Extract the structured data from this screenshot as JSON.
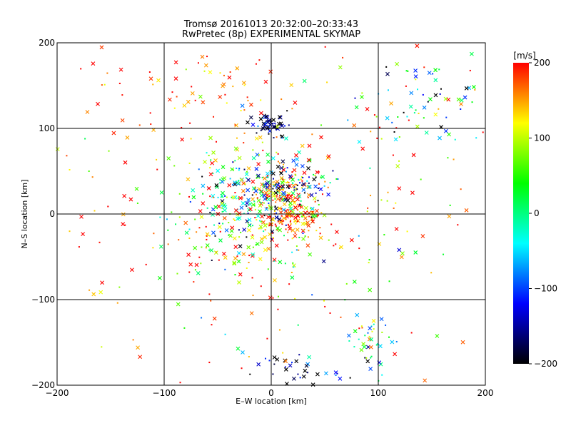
{
  "chart_data": {
    "type": "scatter",
    "title": "Tromsø 20161013 20:32:00–20:33:43",
    "subtitle": "RwPretec (8p) EXPERIMENTAL SKYMAP",
    "xlabel": "E–W location [km]",
    "ylabel": "N–S location [km]",
    "xlim": [
      -200,
      200
    ],
    "ylim": [
      -200,
      200
    ],
    "xticks": [
      -200,
      -100,
      0,
      100,
      200
    ],
    "yticks": [
      -200,
      -100,
      0,
      100,
      200
    ],
    "grid": true,
    "colorbar": {
      "label": "[m/s]",
      "range": [
        -200,
        200
      ],
      "ticks": [
        200,
        100,
        0,
        -100,
        -200
      ],
      "colormap": [
        "#000000",
        "#0000ff",
        "#00ffff",
        "#00ff00",
        "#ffff00",
        "#ff0000"
      ]
    },
    "marker_types": [
      "cross",
      "dot"
    ],
    "clusters": [
      {
        "x": 0,
        "y": 105,
        "sx": 8,
        "sy": 6,
        "n": 55,
        "v": -180,
        "vs": 40
      },
      {
        "x": 10,
        "y": 20,
        "sx": 18,
        "sy": 18,
        "n": 170,
        "v": 160,
        "vs": 70
      },
      {
        "x": 25,
        "y": -10,
        "sx": 12,
        "sy": 10,
        "n": 60,
        "v": 170,
        "vs": 50
      },
      {
        "x": -30,
        "y": 30,
        "sx": 30,
        "sy": 20,
        "n": 120,
        "v": 0,
        "vs": 110
      },
      {
        "x": -20,
        "y": -20,
        "sx": 40,
        "sy": 30,
        "n": 180,
        "v": 60,
        "vs": 130
      },
      {
        "x": 15,
        "y": 35,
        "sx": 20,
        "sy": 15,
        "n": 70,
        "v": -150,
        "vs": 60
      },
      {
        "x": 90,
        "y": -150,
        "sx": 12,
        "sy": 20,
        "n": 45,
        "v": 0,
        "vs": 100
      },
      {
        "x": 20,
        "y": -180,
        "sx": 25,
        "sy": 12,
        "n": 35,
        "v": -160,
        "vs": 60
      },
      {
        "x": 150,
        "y": 130,
        "sx": 30,
        "sy": 25,
        "n": 60,
        "v": -40,
        "vs": 140
      },
      {
        "x": -90,
        "y": 140,
        "sx": 50,
        "sy": 30,
        "n": 50,
        "v": 170,
        "vs": 40
      },
      {
        "x": 0,
        "y": 0,
        "sx": 120,
        "sy": 120,
        "n": 320,
        "v": 150,
        "vs": 90
      }
    ]
  }
}
